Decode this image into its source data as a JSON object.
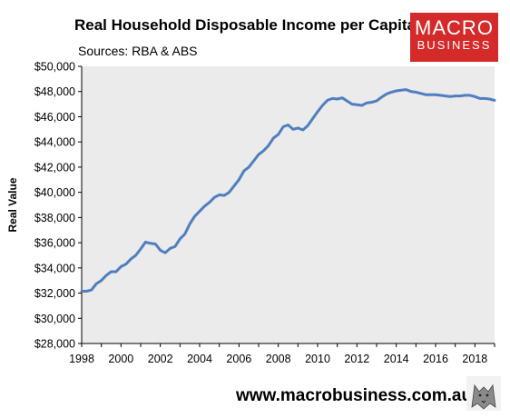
{
  "header": {
    "title": "Real Household Disposable Income per Capita",
    "subtitle": "Sources: RBA & ABS"
  },
  "logo": {
    "line1": "MACRO",
    "line2": "BUSINESS",
    "color": "#d42a2a"
  },
  "footer": {
    "url": "www.macrobusiness.com.au",
    "mascot_icon": "wolf-icon"
  },
  "colors": {
    "line": "#4f7fbf",
    "plot_bg": "#ebebeb"
  },
  "chart_data": {
    "type": "line",
    "title": "Real Household Disposable Income per Capita",
    "ylabel": "Real Value",
    "xlabel": "",
    "xlim": [
      1998,
      2019
    ],
    "ylim": [
      28000,
      50000
    ],
    "y_ticks": [
      28000,
      30000,
      32000,
      34000,
      36000,
      38000,
      40000,
      42000,
      44000,
      46000,
      48000,
      50000
    ],
    "y_tick_labels": [
      "$28,000",
      "$30,000",
      "$32,000",
      "$34,000",
      "$36,000",
      "$38,000",
      "$40,000",
      "$42,000",
      "$44,000",
      "$46,000",
      "$48,000",
      "$50,000"
    ],
    "x_ticks": [
      1998,
      2000,
      2002,
      2004,
      2006,
      2008,
      2010,
      2012,
      2014,
      2016,
      2018
    ],
    "x_tick_labels": [
      "1998",
      "2000",
      "2002",
      "2004",
      "2006",
      "2008",
      "2010",
      "2012",
      "2014",
      "2016",
      "2018"
    ],
    "grid": false,
    "legend": "none",
    "series": [
      {
        "x": [
          1998.0,
          1998.25,
          1998.5,
          1998.75,
          1999.0,
          1999.25,
          1999.5,
          1999.75,
          2000.0,
          2000.25,
          2000.5,
          2000.75,
          2001.0,
          2001.25,
          2001.5,
          2001.75,
          2002.0,
          2002.25,
          2002.5,
          2002.75,
          2003.0,
          2003.25,
          2003.5,
          2003.75,
          2004.0,
          2004.25,
          2004.5,
          2004.75,
          2005.0,
          2005.25,
          2005.5,
          2005.75,
          2006.0,
          2006.25,
          2006.5,
          2006.75,
          2007.0,
          2007.25,
          2007.5,
          2007.75,
          2008.0,
          2008.25,
          2008.5,
          2008.75,
          2009.0,
          2009.25,
          2009.5,
          2009.75,
          2010.0,
          2010.25,
          2010.5,
          2010.75,
          2011.0,
          2011.25,
          2011.5,
          2011.75,
          2012.0,
          2012.25,
          2012.5,
          2012.75,
          2013.0,
          2013.25,
          2013.5,
          2013.75,
          2014.0,
          2014.25,
          2014.5,
          2014.75,
          2015.0,
          2015.25,
          2015.5,
          2015.75,
          2016.0,
          2016.25,
          2016.5,
          2016.75,
          2017.0,
          2017.25,
          2017.5,
          2017.75,
          2018.0,
          2018.25,
          2018.5,
          2018.75,
          2019.0
        ],
        "values": [
          32150,
          32150,
          32250,
          32750,
          33000,
          33400,
          33700,
          33700,
          34100,
          34300,
          34700,
          35000,
          35500,
          36050,
          35950,
          35900,
          35400,
          35200,
          35550,
          35700,
          36300,
          36700,
          37500,
          38100,
          38500,
          38900,
          39200,
          39600,
          39800,
          39750,
          40000,
          40500,
          41000,
          41700,
          42000,
          42500,
          43000,
          43300,
          43700,
          44300,
          44600,
          45200,
          45350,
          45000,
          45100,
          44950,
          45300,
          45850,
          46400,
          46900,
          47300,
          47450,
          47400,
          47500,
          47250,
          47000,
          46950,
          46900,
          47100,
          47150,
          47250,
          47550,
          47800,
          47950,
          48050,
          48100,
          48150,
          48000,
          47950,
          47850,
          47750,
          47750,
          47750,
          47700,
          47650,
          47600,
          47650,
          47650,
          47700,
          47700,
          47600,
          47450,
          47450,
          47400,
          47300
        ]
      }
    ]
  }
}
